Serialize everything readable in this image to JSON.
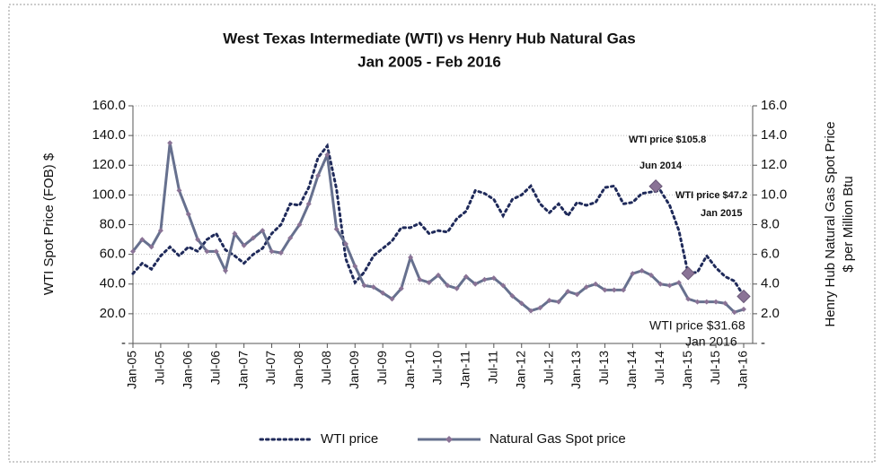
{
  "chart_data": {
    "type": "line",
    "title": "West Texas Intermediate (WTI) vs Henry Hub Natural Gas",
    "subtitle": "Jan 2005 - Feb 2016",
    "ylabel": "WTI Spot Price (FOB) $",
    "y2label": [
      "Henry Hub Natural Gas Spot Price",
      "$ per Million Btu"
    ],
    "categories": [
      "Jan-05",
      null,
      null,
      "Jul-05",
      null,
      null,
      "Jan-06",
      null,
      null,
      "Jul-06",
      null,
      null,
      "Jan-07",
      null,
      null,
      "Jul-07",
      null,
      null,
      "Jan-08",
      null,
      null,
      "Jul-08",
      null,
      null,
      "Jan-09",
      null,
      null,
      "Jul-09",
      null,
      null,
      "Jan-10",
      null,
      null,
      "Jul-10",
      null,
      null,
      "Jan-11",
      null,
      null,
      "Jul-11",
      null,
      null,
      "Jan-12",
      null,
      null,
      "Jul-12",
      null,
      null,
      "Jan-13",
      null,
      null,
      "Jul-13",
      null,
      null,
      "Jan-14",
      null,
      null,
      "Jul-14",
      null,
      null,
      "Jan-15",
      null,
      null,
      "Jul-15",
      null,
      null,
      "Jan-16"
    ],
    "series": [
      {
        "name": "WTI price",
        "color": "#1f2a5a",
        "axis": "y",
        "style": "dotted",
        "values": [
          47,
          54,
          50,
          59,
          65,
          59,
          65,
          62,
          70,
          74,
          63,
          59,
          54,
          60,
          64,
          74,
          80,
          94,
          93,
          105,
          125,
          133,
          104,
          57,
          41,
          48,
          59,
          64,
          69,
          78,
          78,
          81,
          74,
          76,
          75,
          84,
          89,
          103,
          101,
          97,
          86,
          97,
          100,
          106,
          94,
          88,
          94,
          86,
          95,
          93,
          95,
          105,
          106,
          94,
          95,
          101,
          102,
          103,
          93,
          76,
          47,
          48,
          59,
          51,
          45,
          42,
          32
        ]
      },
      {
        "name": "Natural Gas Spot price",
        "color": "#66708e",
        "axis": "y2",
        "style": "solid",
        "values": [
          6.2,
          7.0,
          6.5,
          7.6,
          13.5,
          10.3,
          8.7,
          7.0,
          6.2,
          6.2,
          4.9,
          7.4,
          6.6,
          7.1,
          7.6,
          6.2,
          6.1,
          7.1,
          8.0,
          9.4,
          11.3,
          12.7,
          7.7,
          6.7,
          5.2,
          3.9,
          3.8,
          3.4,
          3.0,
          3.7,
          5.8,
          4.3,
          4.1,
          4.6,
          3.9,
          3.7,
          4.5,
          4.0,
          4.3,
          4.4,
          3.9,
          3.2,
          2.7,
          2.2,
          2.4,
          2.9,
          2.8,
          3.5,
          3.3,
          3.8,
          4.0,
          3.6,
          3.6,
          3.6,
          4.7,
          4.9,
          4.6,
          4.0,
          3.9,
          4.1,
          3.0,
          2.8,
          2.8,
          2.8,
          2.7,
          2.1,
          2.3
        ]
      }
    ],
    "highlights": [
      {
        "label": "WTI price $105.8",
        "date": "Jun 2014",
        "value": 105.8
      },
      {
        "label": "WTI price $47.2",
        "date": "Jan 2015",
        "value": 47.2
      },
      {
        "label": "WTI price $31.68",
        "date": "Jan 2016",
        "value": 31.68
      }
    ],
    "highlight_color": "#8a7396",
    "ylim": [
      0,
      160
    ],
    "yticks": [
      {
        "value": 0,
        "label": "-"
      },
      {
        "value": 20,
        "label": "20.0"
      },
      {
        "value": 40,
        "label": "40.0"
      },
      {
        "value": 60,
        "label": "60.0"
      },
      {
        "value": 80,
        "label": "80.0"
      },
      {
        "value": 100,
        "label": "100.0"
      },
      {
        "value": 120,
        "label": "120.0"
      },
      {
        "value": 140,
        "label": "140.0"
      },
      {
        "value": 160,
        "label": "160.0"
      }
    ],
    "y2lim": [
      0,
      16
    ],
    "y2ticks": [
      {
        "value": 0,
        "label": "-"
      },
      {
        "value": 2,
        "label": "2.0"
      },
      {
        "value": 4,
        "label": "4.0"
      },
      {
        "value": 6,
        "label": "6.0"
      },
      {
        "value": 8,
        "label": "8.0"
      },
      {
        "value": 10,
        "label": "10.0"
      },
      {
        "value": 12,
        "label": "12.0"
      },
      {
        "value": 14,
        "label": "14.0"
      },
      {
        "value": 16,
        "label": "16.0"
      }
    ],
    "grid": true,
    "legend": "bottom"
  }
}
